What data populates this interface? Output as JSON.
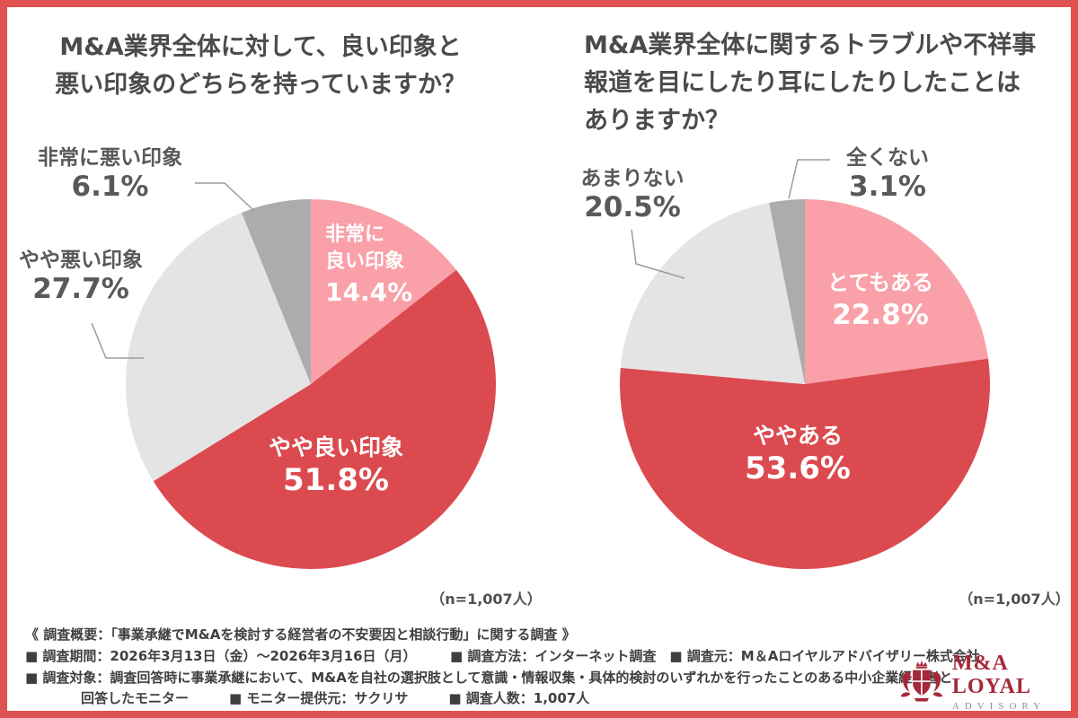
{
  "colors": {
    "frame": "#E05151",
    "pie_red": "#DB4A4F",
    "pie_pink": "#F9A0A8",
    "pie_gray_light": "#E4E4E4",
    "pie_gray_dark": "#ACACAC",
    "title_text": "#4B4B4B",
    "label_text": "#595959",
    "logo_red": "#A5293A"
  },
  "chart_data": [
    {
      "type": "pie",
      "title": "M&A業界全体に対して、良い印象と悪い印象のどちらを持っていますか？",
      "title_display": "M&A業界全体に対して、良い印象と\n悪い印象のどちらを持っていますか？",
      "n_label": "（n=1,007人）",
      "start_angle": "top",
      "direction": "clockwise",
      "legend": "labels-on-and-around-slices",
      "segments": [
        {
          "label": "非常に良い印象",
          "display_label": "非常に\n良い印象",
          "value": 14.4,
          "pct_label": "14.4%",
          "color": "#F9A0A8",
          "label_position": "inside"
        },
        {
          "label": "やや良い印象",
          "display_label": "やや良い印象",
          "value": 51.8,
          "pct_label": "51.8%",
          "color": "#DB4A4F",
          "label_position": "inside"
        },
        {
          "label": "やや悪い印象",
          "display_label": "やや悪い印象",
          "value": 27.7,
          "pct_label": "27.7%",
          "color": "#E4E4E4",
          "label_position": "outside"
        },
        {
          "label": "非常に悪い印象",
          "display_label": "非常に悪い印象",
          "value": 6.1,
          "pct_label": "6.1%",
          "color": "#ACACAC",
          "label_position": "outside"
        }
      ]
    },
    {
      "type": "pie",
      "title": "M&A業界全体に関するトラブルや不祥事報道を目にしたり耳にしたりしたことはありますか？",
      "title_display": "M&A業界全体に関するトラブルや不祥事\n報道を目にしたり耳にしたりしたことは\nありますか？",
      "n_label": "（n=1,007人）",
      "start_angle": "top",
      "direction": "clockwise",
      "legend": "labels-on-and-around-slices",
      "segments": [
        {
          "label": "とてもある",
          "display_label": "とてもある",
          "value": 22.8,
          "pct_label": "22.8%",
          "color": "#F9A0A8",
          "label_position": "inside"
        },
        {
          "label": "ややある",
          "display_label": "ややある",
          "value": 53.6,
          "pct_label": "53.6%",
          "color": "#DB4A4F",
          "label_position": "inside"
        },
        {
          "label": "あまりない",
          "display_label": "あまりない",
          "value": 20.5,
          "pct_label": "20.5%",
          "color": "#E4E4E4",
          "label_position": "outside"
        },
        {
          "label": "全くない",
          "display_label": "全くない",
          "value": 3.1,
          "pct_label": "3.1%",
          "color": "#ACACAC",
          "label_position": "outside"
        }
      ]
    }
  ],
  "footer": {
    "lines": [
      "《 調査概要：「事業承継でM&Aを検討する経営者の不安要因と相談行動」に関する調査 》",
      "■ 調査期間：2026年3月13日（金）〜2026年3月16日（月）　　　■ 調査方法：インターネット調査　■ 調査元：M＆Aロイヤルアドバイザリー株式会社",
      "■ 調査対象：調査回答時に事業承継において、M&Aを自社の選択肢として意識・情報収集・具体的検討のいずれかを行ったことのある中小企業経営者と",
      "回答したモニター　　　■ モニター提供元：サクリサ　　　■ 調査人数：1,007人"
    ]
  },
  "brand": {
    "name": "M&A LOYAL",
    "subtitle": "ADVISORY"
  }
}
